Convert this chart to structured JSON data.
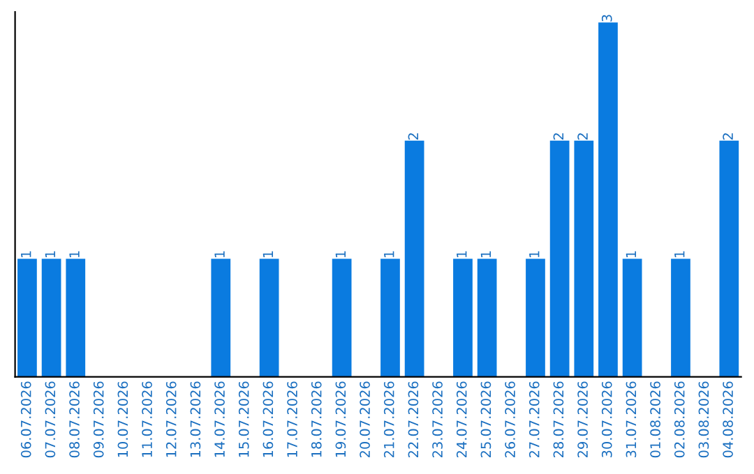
{
  "chart_data": {
    "type": "bar",
    "categories": [
      "06.07.2026",
      "07.07.2026",
      "08.07.2026",
      "09.07.2026",
      "10.07.2026",
      "11.07.2026",
      "12.07.2026",
      "13.07.2026",
      "14.07.2026",
      "15.07.2026",
      "16.07.2026",
      "17.07.2026",
      "18.07.2026",
      "19.07.2026",
      "20.07.2026",
      "21.07.2026",
      "22.07.2026",
      "23.07.2026",
      "24.07.2026",
      "25.07.2026",
      "26.07.2026",
      "27.07.2026",
      "28.07.2026",
      "29.07.2026",
      "30.07.2026",
      "31.07.2026",
      "01.08.2026",
      "02.08.2026",
      "03.08.2026",
      "04.08.2026"
    ],
    "values": [
      1,
      1,
      1,
      0,
      0,
      0,
      0,
      0,
      1,
      0,
      1,
      0,
      0,
      1,
      0,
      1,
      2,
      0,
      1,
      1,
      0,
      1,
      2,
      2,
      3,
      1,
      0,
      1,
      0,
      2
    ],
    "value_labels": [
      "1",
      "1",
      "1",
      null,
      null,
      null,
      null,
      null,
      "1",
      null,
      "1",
      null,
      null,
      "1",
      null,
      "1",
      "2",
      null,
      "1",
      "1",
      null,
      "1",
      "2",
      "2",
      "3",
      "1",
      null,
      "1",
      null,
      "2"
    ],
    "color": "#0a7be0",
    "tick_labels": "x",
    "grid": false,
    "legend": false
  }
}
